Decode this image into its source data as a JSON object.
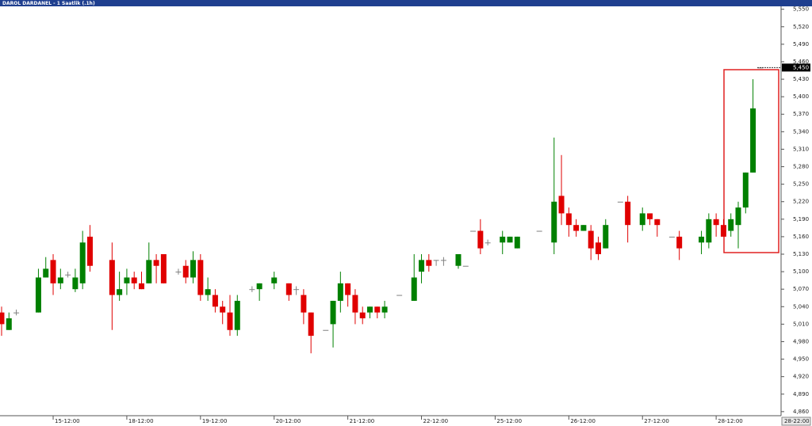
{
  "chart_data": {
    "type": "candlestick",
    "title": "DAROL DARDANEL - 1 Saatlik (.1h)",
    "categories": [
      null,
      null,
      null,
      null,
      null,
      null,
      null,
      "15-12:00",
      null,
      null,
      null,
      null,
      null,
      null,
      null,
      null,
      null,
      "18-12:00",
      null,
      null,
      null,
      null,
      null,
      null,
      null,
      null,
      null,
      "19-12:00",
      null,
      null,
      null,
      null,
      null,
      null,
      null,
      null,
      null,
      "20-12:00",
      null,
      null,
      null,
      null,
      null,
      null,
      null,
      null,
      null,
      "21-12:00",
      null,
      null,
      null,
      null,
      null,
      null,
      null,
      null,
      null,
      "22-12:00",
      null,
      null,
      null,
      null,
      null,
      null,
      null,
      null,
      null,
      "25-12:00",
      null,
      null,
      null,
      null,
      null,
      null,
      null,
      null,
      null,
      "26-12:00",
      null,
      null,
      null,
      null,
      null,
      null,
      null,
      null,
      null,
      "27-12:00",
      null,
      null,
      null,
      null,
      null,
      null,
      null,
      null,
      null,
      "28-12:00",
      null,
      null,
      null,
      null,
      null,
      null
    ],
    "open": [
      5030,
      5000,
      5030,
      null,
      null,
      5030,
      5090,
      5120,
      5080,
      5095,
      5070,
      5080,
      5160,
      null,
      null,
      5120,
      5060,
      5080,
      5090,
      5080,
      5080,
      5120,
      5130,
      null,
      5100,
      5110,
      5090,
      5120,
      5060,
      5060,
      5040,
      5030,
      5000,
      null,
      5070,
      5070,
      null,
      5080,
      null,
      5080,
      5070,
      5060,
      5030,
      null,
      5000,
      5010,
      5050,
      5080,
      5060,
      5030,
      5030,
      5040,
      5030,
      null,
      5060,
      null,
      5050,
      5100,
      5120,
      5120,
      5120,
      null,
      5110,
      5110,
      5170,
      5170,
      5150,
      null,
      5150,
      5150,
      5140,
      null,
      null,
      5170,
      null,
      5150,
      5230,
      5200,
      5180,
      5170,
      5170,
      5150,
      5140,
      null,
      5220,
      5220,
      null,
      5180,
      5200,
      5190,
      null,
      5160,
      5160,
      null,
      null,
      5150,
      5150,
      5190,
      5180,
      5170,
      5180,
      5210,
      5270,
      5450
    ],
    "high": [
      5040,
      5030,
      5035,
      null,
      null,
      5105,
      5125,
      5130,
      5105,
      5100,
      5105,
      5170,
      5180,
      null,
      null,
      5150,
      5100,
      5105,
      5100,
      5100,
      5150,
      5130,
      5130,
      null,
      5105,
      5120,
      5135,
      5130,
      5090,
      5070,
      5050,
      5060,
      5060,
      null,
      5075,
      5080,
      null,
      5100,
      null,
      5080,
      5075,
      5070,
      5030,
      null,
      5000,
      5050,
      5100,
      5080,
      5070,
      5040,
      5040,
      5040,
      5050,
      null,
      5060,
      null,
      5130,
      5130,
      5130,
      5120,
      5125,
      null,
      5130,
      5110,
      5170,
      5190,
      5155,
      null,
      5170,
      5160,
      5160,
      null,
      null,
      5170,
      null,
      5330,
      5300,
      5210,
      5190,
      5180,
      5180,
      5160,
      5190,
      null,
      5220,
      5230,
      null,
      5210,
      5200,
      5190,
      null,
      5160,
      5170,
      null,
      null,
      5170,
      5200,
      5200,
      5190,
      5200,
      5220,
      5270,
      5430,
      5450
    ],
    "low": [
      4990,
      5000,
      5025,
      null,
      null,
      5030,
      5090,
      5060,
      5070,
      5090,
      5065,
      5070,
      5100,
      null,
      null,
      5000,
      5050,
      5060,
      5070,
      5070,
      5080,
      5080,
      5080,
      null,
      5095,
      5080,
      5080,
      5050,
      5050,
      5030,
      5010,
      4990,
      4990,
      null,
      5065,
      5050,
      null,
      5070,
      null,
      5050,
      5060,
      5010,
      4960,
      null,
      5000,
      4970,
      5030,
      5040,
      5010,
      5010,
      5020,
      5020,
      5020,
      null,
      5060,
      null,
      5050,
      5080,
      5100,
      5110,
      5110,
      null,
      5105,
      5110,
      5170,
      5130,
      5145,
      null,
      5130,
      5150,
      5140,
      null,
      null,
      5170,
      null,
      5130,
      5180,
      5160,
      5160,
      5170,
      5120,
      5120,
      5140,
      null,
      5220,
      5150,
      null,
      5170,
      5180,
      5160,
      null,
      5160,
      5120,
      null,
      null,
      5130,
      5140,
      5160,
      5160,
      5160,
      5140,
      5200,
      5270,
      5450
    ],
    "close": [
      5010,
      5020,
      5030,
      null,
      null,
      5090,
      5105,
      5080,
      5090,
      5095,
      5090,
      5150,
      5110,
      null,
      null,
      5060,
      5070,
      5090,
      5080,
      5070,
      5120,
      5110,
      5080,
      null,
      5100,
      5090,
      5120,
      5060,
      5070,
      5040,
      5030,
      5000,
      5050,
      null,
      5070,
      5080,
      null,
      5090,
      null,
      5060,
      5070,
      5030,
      4990,
      null,
      5000,
      5050,
      5080,
      5060,
      5030,
      5020,
      5040,
      5030,
      5040,
      null,
      5060,
      null,
      5090,
      5120,
      5110,
      5120,
      5120,
      null,
      5130,
      5110,
      5170,
      5140,
      5150,
      null,
      5160,
      5160,
      5160,
      null,
      null,
      5170,
      null,
      5220,
      5200,
      5180,
      5170,
      5180,
      5140,
      5130,
      5180,
      null,
      5220,
      5180,
      null,
      5200,
      5190,
      5180,
      null,
      5160,
      5140,
      null,
      null,
      5160,
      5190,
      5180,
      5160,
      5190,
      5210,
      5270,
      5380,
      5450
    ],
    "colors": {
      "up": "#008000",
      "down": "#e00000",
      "flat": "#808080"
    },
    "ylim": [
      4853,
      5555
    ],
    "yticks": [
      {
        "value": 4860,
        "label": "4,860"
      },
      {
        "value": 4890,
        "label": "4,890"
      },
      {
        "value": 4920,
        "label": "4,920"
      },
      {
        "value": 4950,
        "label": "4,950"
      },
      {
        "value": 4980,
        "label": "4,980"
      },
      {
        "value": 5010,
        "label": "5,010"
      },
      {
        "value": 5040,
        "label": "5,040"
      },
      {
        "value": 5070,
        "label": "5,070"
      },
      {
        "value": 5100,
        "label": "5,100"
      },
      {
        "value": 5130,
        "label": "5,130"
      },
      {
        "value": 5160,
        "label": "5,160"
      },
      {
        "value": 5190,
        "label": "5,190"
      },
      {
        "value": 5220,
        "label": "5,220"
      },
      {
        "value": 5250,
        "label": "5,250"
      },
      {
        "value": 5280,
        "label": "5,280"
      },
      {
        "value": 5310,
        "label": "5,310"
      },
      {
        "value": 5340,
        "label": "5,340"
      },
      {
        "value": 5370,
        "label": "5,370"
      },
      {
        "value": 5400,
        "label": "5,400"
      },
      {
        "value": 5430,
        "label": "5,430"
      },
      {
        "value": 5460,
        "label": "5,460"
      },
      {
        "value": 5490,
        "label": "5,490"
      },
      {
        "value": 5520,
        "label": "5,520"
      },
      {
        "value": 5550,
        "label": "5,550"
      }
    ],
    "last_price": {
      "value": 5450,
      "label": "5,450"
    },
    "last_x_label": "28-22:00"
  }
}
